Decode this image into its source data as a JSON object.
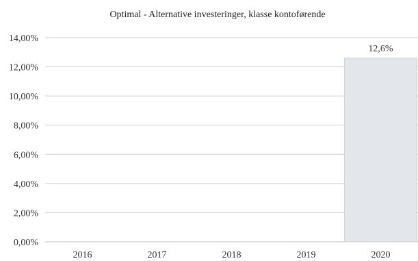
{
  "chart_data": {
    "type": "bar",
    "title": "Optimal - Alternative investeringer, klasse kontoførende",
    "categories": [
      "2016",
      "2017",
      "2018",
      "2019",
      "2020"
    ],
    "values": [
      null,
      null,
      null,
      null,
      12.6
    ],
    "data_labels": [
      "",
      "",
      "",
      "",
      "12,6%"
    ],
    "xlabel": "",
    "ylabel": "",
    "ylim": [
      0,
      14
    ],
    "yticks": [
      0,
      2,
      4,
      6,
      8,
      10,
      12,
      14
    ],
    "ytick_labels": [
      "0,00%",
      "2,00%",
      "4,00%",
      "6,00%",
      "8,00%",
      "10,00%",
      "12,00%",
      "14,00%"
    ],
    "grid": true,
    "legend": "none",
    "colors": {
      "bar_fill": "#e3e7ec",
      "bar_stroke": "#c9ced4",
      "grid": "#d0d0d0",
      "text": "#333333"
    }
  }
}
